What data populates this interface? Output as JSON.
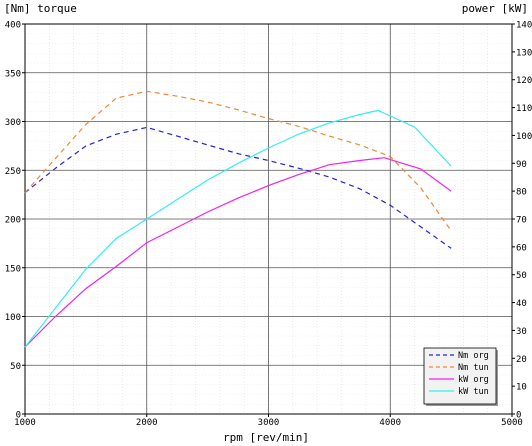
{
  "chart_data": {
    "type": "line",
    "title_left": "[Nm] torque",
    "title_right": "power [kW]",
    "xlabel": "rpm [rev/min]",
    "x_ticks": [
      1000,
      2000,
      3000,
      4000,
      5000
    ],
    "xlim": [
      1000,
      5000
    ],
    "ylim_left": [
      0,
      400
    ],
    "ylim_right": [
      0,
      140
    ],
    "y_ticks_left": [
      0,
      50,
      100,
      150,
      200,
      250,
      300,
      350,
      400
    ],
    "y_ticks_right": [
      0,
      10,
      20,
      30,
      40,
      50,
      60,
      70,
      80,
      90,
      100,
      110,
      120,
      130,
      140
    ],
    "grid": true,
    "legend_position": "bottom-right",
    "series": [
      {
        "name": "Nm org",
        "axis": "left",
        "color": "#2222dd",
        "dash": "dashed",
        "x": [
          1000,
          1250,
          1500,
          1750,
          2000,
          2250,
          2500,
          2750,
          3000,
          3250,
          3500,
          3750,
          4000,
          4250,
          4500
        ],
        "y": [
          227,
          252,
          275,
          287,
          294,
          285,
          276,
          267,
          260,
          252,
          243,
          231,
          214,
          192,
          170
        ]
      },
      {
        "name": "Nm tun",
        "axis": "left",
        "color": "#ee8833",
        "dash": "dashed",
        "x": [
          1000,
          1250,
          1500,
          1750,
          2000,
          2250,
          2500,
          2750,
          3000,
          3250,
          3500,
          3750,
          4000,
          4250,
          4500
        ],
        "y": [
          227,
          262,
          297,
          324,
          331,
          326,
          320,
          312,
          303,
          295,
          285,
          276,
          264,
          232,
          188
        ]
      },
      {
        "name": "kW org",
        "axis": "right",
        "color": "#ee22ee",
        "dash": "solid",
        "x": [
          1000,
          1250,
          1500,
          1750,
          2000,
          2250,
          2500,
          2750,
          3000,
          3250,
          3500,
          3750,
          3950,
          4250,
          4500
        ],
        "y": [
          24,
          35,
          45,
          53,
          61.5,
          67,
          72.5,
          77.5,
          82,
          86,
          89.5,
          91,
          92,
          88,
          80
        ]
      },
      {
        "name": "kW tun",
        "axis": "right",
        "color": "#33eeee",
        "dash": "solid",
        "x": [
          1000,
          1250,
          1500,
          1750,
          2000,
          2250,
          2500,
          2750,
          3000,
          3250,
          3500,
          3750,
          3900,
          4200,
          4500
        ],
        "y": [
          24,
          38,
          52,
          63,
          70,
          77,
          84,
          90,
          95.5,
          100.5,
          104.5,
          107.5,
          109,
          103,
          89
        ]
      }
    ]
  }
}
